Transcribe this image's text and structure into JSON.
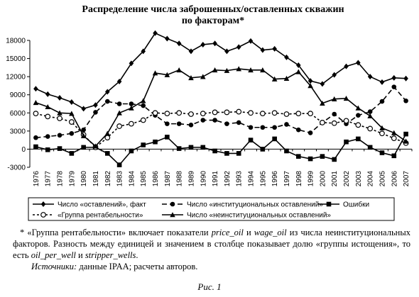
{
  "chart_data": {
    "type": "line",
    "title": [
      "Распределение числа заброшенных/оставленных скважин",
      "по факторам*"
    ],
    "categories": [
      "1976",
      "1977",
      "1978",
      "1979",
      "1980",
      "1981",
      "1982",
      "1983",
      "1984",
      "1985",
      "1986",
      "1987",
      "1988",
      "1989",
      "1990",
      "1991",
      "1992",
      "1993",
      "1994",
      "1995",
      "1996",
      "1997",
      "1998",
      "1999",
      "2000",
      "2001",
      "2002",
      "2003",
      "2004",
      "2005",
      "2006",
      "2007"
    ],
    "ylim": [
      -3000,
      18000
    ],
    "yticks": [
      -3000,
      0,
      3000,
      6000,
      9000,
      12000,
      15000,
      18000
    ],
    "series": [
      {
        "name": "Число «оставлений», факт",
        "color": "#000000",
        "marker": "diamond",
        "line_style": "solid",
        "values": [
          10000,
          9100,
          8500,
          7800,
          6700,
          7300,
          9500,
          11200,
          14200,
          16200,
          19200,
          18300,
          17500,
          16200,
          17300,
          17500,
          16200,
          16900,
          17900,
          16400,
          16600,
          15200,
          13900,
          11300,
          10800,
          12300,
          13700,
          14300,
          12000,
          11100,
          11800,
          11700
        ]
      },
      {
        "name": "Число «институциональных оставлений»",
        "color": "#000000",
        "marker": "circle",
        "line_style": "dashed",
        "values": [
          1900,
          2100,
          2300,
          2600,
          3200,
          6100,
          7900,
          7500,
          7500,
          7200,
          5600,
          4200,
          4200,
          4000,
          4800,
          4800,
          4200,
          4400,
          3600,
          3600,
          3600,
          4100,
          3200,
          2700,
          4400,
          5800,
          4200,
          5600,
          6200,
          7900,
          10300,
          8000
        ]
      },
      {
        "name": "Ошибки",
        "color": "#000000",
        "marker": "square",
        "line_style": "solid",
        "values": [
          400,
          -100,
          100,
          -700,
          300,
          300,
          -700,
          -2600,
          -300,
          700,
          1200,
          2000,
          100,
          300,
          300,
          -300,
          -700,
          -700,
          1500,
          0,
          1700,
          -300,
          -1200,
          -1600,
          -1200,
          -1700,
          1200,
          1700,
          300,
          -600,
          -1100,
          2500
        ]
      },
      {
        "name": "«Группа рентабельности»",
        "color": "#000000",
        "marker": "open-circle",
        "line_style": "dotted",
        "values": [
          5900,
          5400,
          5100,
          4500,
          2400,
          300,
          1900,
          3800,
          4200,
          4800,
          6000,
          5900,
          6000,
          5800,
          5900,
          6100,
          6100,
          6200,
          6000,
          5900,
          6000,
          5800,
          5900,
          5900,
          4400,
          4300,
          4700,
          4000,
          3400,
          2600,
          1800,
          1000
        ]
      },
      {
        "name": "Число «неинституциональных оставлений»",
        "color": "#000000",
        "marker": "triangle",
        "line_style": "solid",
        "values": [
          7700,
          7000,
          6000,
          5900,
          2200,
          500,
          2600,
          6000,
          6800,
          8000,
          12600,
          12300,
          13100,
          11800,
          12000,
          13100,
          13000,
          13300,
          13100,
          13100,
          11600,
          11700,
          12800,
          10500,
          7600,
          8300,
          8400,
          6800,
          5500,
          3500,
          2700,
          1300
        ]
      }
    ]
  },
  "footnote": {
    "note": [
      {
        "text": "* «Группа рентабельности» включает показатели ",
        "italic": false
      },
      {
        "text": "price_oil",
        "italic": true
      },
      {
        "text": " и ",
        "italic": false
      },
      {
        "text": "wage_oil",
        "italic": true
      },
      {
        "text": " из числа неинституциональных факторов. Разность между единицей и значением в столбце показывает долю «группы истощения», то есть ",
        "italic": false
      },
      {
        "text": "oil_per_well",
        "italic": true
      },
      {
        "text": " и ",
        "italic": false
      },
      {
        "text": "stripper_wells",
        "italic": true
      },
      {
        "text": ".",
        "italic": false
      }
    ],
    "sources": [
      {
        "text": "Источники:",
        "italic": true
      },
      {
        "text": " данные IPAA; расчеты авторов.",
        "italic": false
      }
    ]
  },
  "caption": "Рис. 1"
}
